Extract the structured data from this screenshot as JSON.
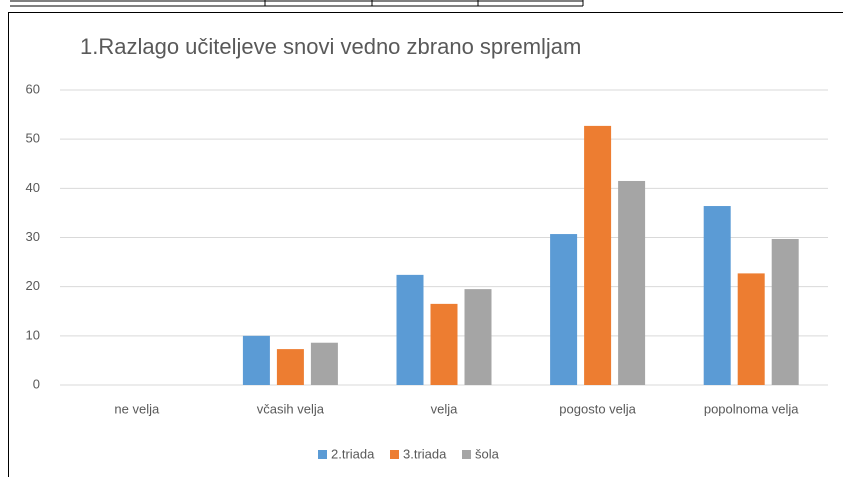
{
  "chart_data": {
    "type": "bar",
    "title": "1.Razlago učiteljeve snovi vedno zbrano spremljam",
    "categories": [
      "ne velja",
      "včasih velja",
      "velja",
      "pogosto velja",
      "popolnoma velja"
    ],
    "series": [
      {
        "name": "2.triada",
        "color": "#5b9bd5",
        "values": [
          0,
          10,
          22.4,
          30.7,
          36.4
        ]
      },
      {
        "name": "3.triada",
        "color": "#ed7d31",
        "values": [
          0,
          7.3,
          16.5,
          52.7,
          22.7
        ]
      },
      {
        "name": "šola",
        "color": "#a5a5a5",
        "values": [
          0,
          8.6,
          19.5,
          41.5,
          29.7
        ]
      }
    ],
    "ylim": [
      0,
      60
    ],
    "yticks": [
      0,
      10,
      20,
      30,
      40,
      50,
      60
    ],
    "grid": true,
    "legend": "bottom"
  }
}
